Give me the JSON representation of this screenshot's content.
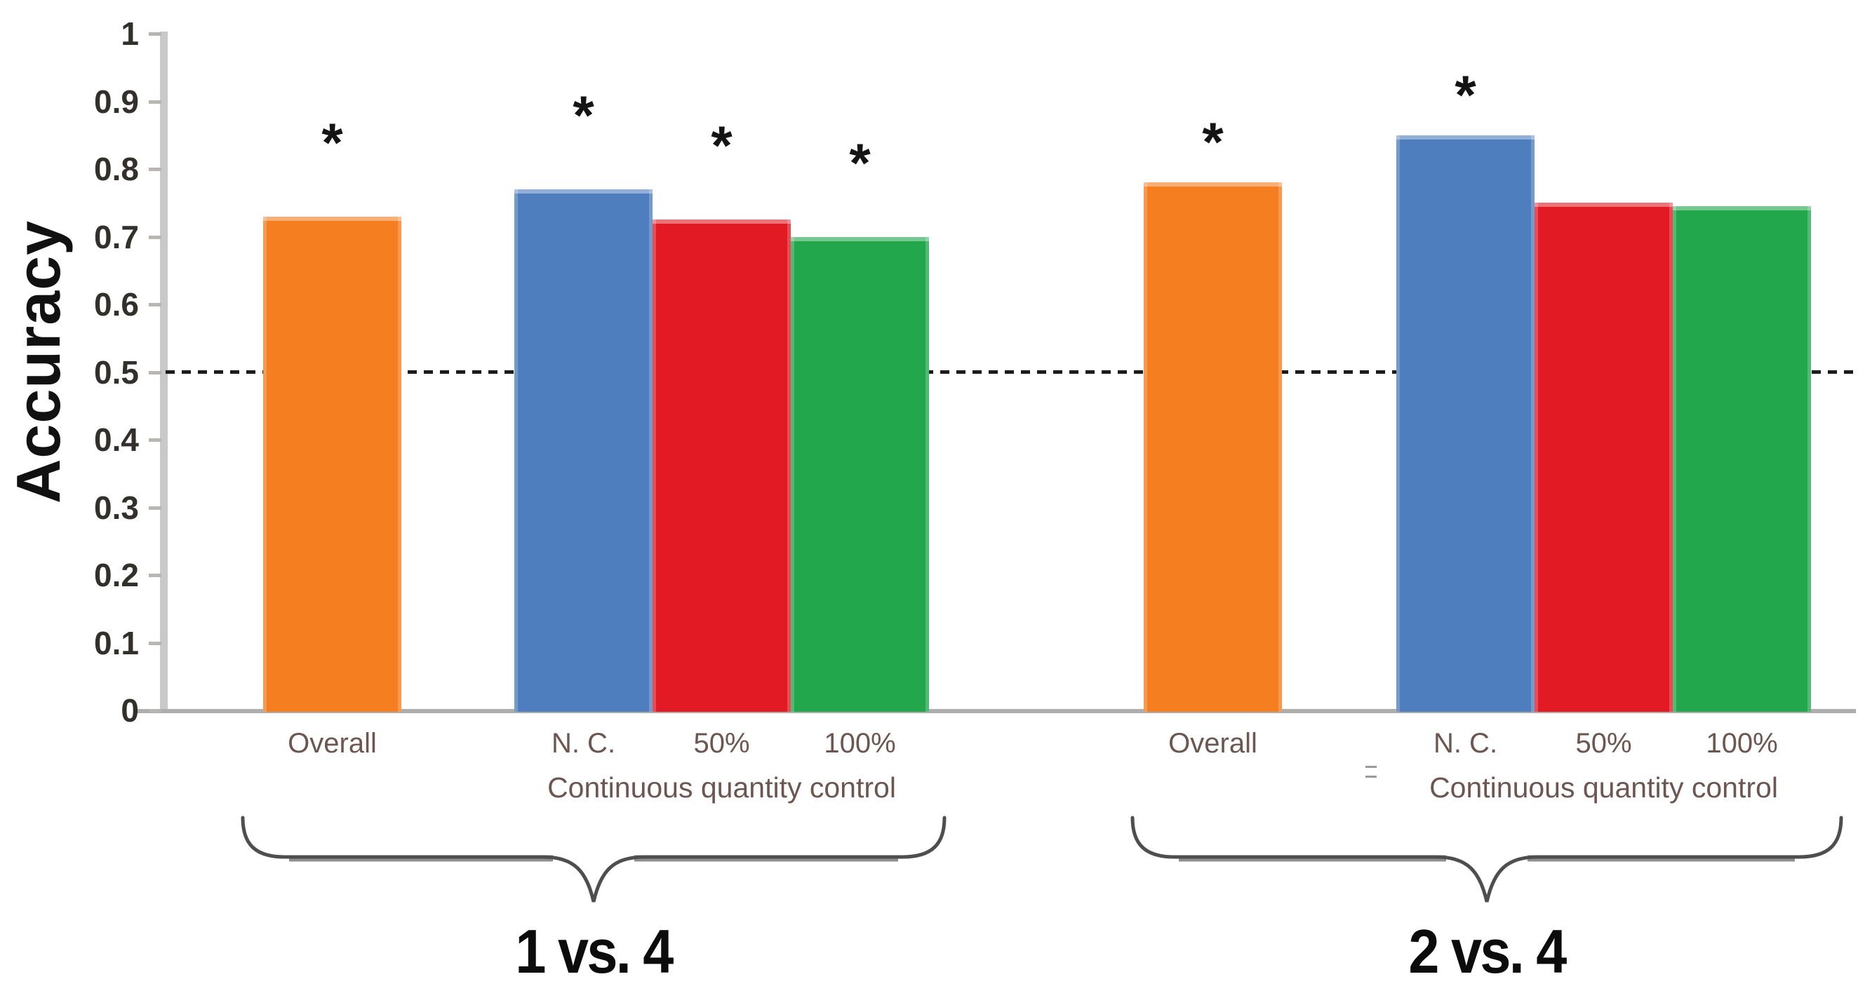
{
  "chart_data": {
    "type": "bar",
    "title": "",
    "ylabel": "Accuracy",
    "xlabel": "",
    "ylim": [
      0,
      1
    ],
    "ytick_labels": [
      "0",
      "0.1",
      "0.2",
      "0.3",
      "0.4",
      "0.5",
      "0.6",
      "0.7",
      "0.8",
      "0.9",
      "1"
    ],
    "grid": false,
    "legend": null,
    "chance_line_value": 0.5,
    "significance_marker": "*",
    "groups": [
      {
        "name": "1 vs. 4",
        "sub_label": "Continuous quantity control",
        "bars": [
          {
            "label": "Overall",
            "value": 0.73,
            "color": "#F57E20",
            "significant": true
          },
          {
            "label": "N. C.",
            "value": 0.77,
            "color": "#4E7EBE",
            "significant": true
          },
          {
            "label": "50%",
            "value": 0.725,
            "color": "#E21A24",
            "significant": true
          },
          {
            "label": "100%",
            "value": 0.7,
            "color": "#22A74D",
            "significant": true
          }
        ]
      },
      {
        "name": "2 vs. 4",
        "sub_label": "Continuous quantity control",
        "bars": [
          {
            "label": "Overall",
            "value": 0.78,
            "color": "#F57E20",
            "significant": true
          },
          {
            "label": "N. C.",
            "value": 0.85,
            "color": "#4E7EBE",
            "significant": true
          },
          {
            "label": "50%",
            "value": 0.75,
            "color": "#E21A24",
            "significant": false
          },
          {
            "label": "100%",
            "value": 0.745,
            "color": "#22A74D",
            "significant": false
          }
        ]
      }
    ],
    "colors": {
      "axis": "#C9C9C9",
      "baseline": "#AEAEAE",
      "tick_label": "#33302C",
      "category_label": "#6D5550",
      "dashed_line": "#1C1C1C",
      "brace": "#4E4E4E",
      "group_title": "#0C0C0C"
    }
  }
}
